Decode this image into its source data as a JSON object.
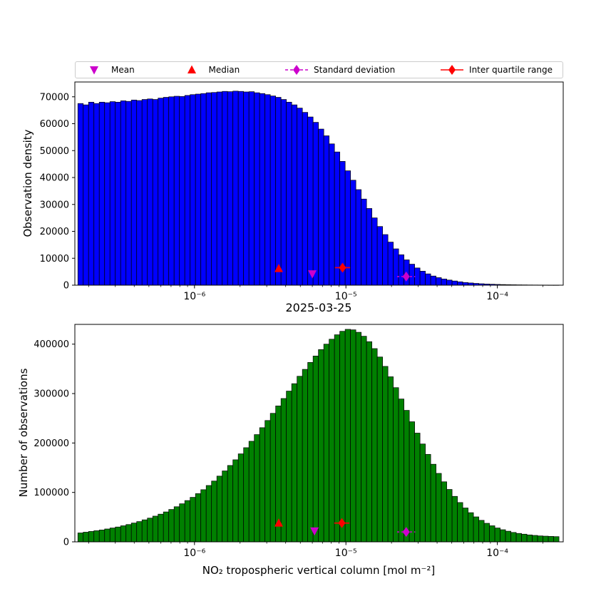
{
  "legend": {
    "items": [
      {
        "label": "Mean",
        "marker": "triangle-down",
        "color": "#cc00cc",
        "line": "none"
      },
      {
        "label": "Median",
        "marker": "triangle-up",
        "color": "#ff0000",
        "line": "none"
      },
      {
        "label": "Standard deviation",
        "marker": "diamond",
        "color": "#cc00cc",
        "line": "dashed"
      },
      {
        "label": "Inter quartile range",
        "marker": "diamond",
        "color": "#ff0000",
        "line": "solid"
      }
    ]
  },
  "chart_data": [
    {
      "type": "bar",
      "title": "",
      "ylabel": "Observation density",
      "xlabel": "2025-03-25",
      "x_scale": "log10",
      "xlim_log10": [
        -6.79,
        -3.565
      ],
      "ylim": [
        0,
        75500
      ],
      "grid": false,
      "legend_position": "top",
      "bar_color": "#0000ff",
      "bar_edge_color": "#000000",
      "xticks": [
        {
          "v": 1e-06,
          "label": "10⁻⁶"
        },
        {
          "v": 1e-05,
          "label": "10⁻⁵"
        },
        {
          "v": 0.0001,
          "label": "10⁻⁴"
        }
      ],
      "yticks": [
        0,
        10000,
        20000,
        30000,
        40000,
        50000,
        60000,
        70000
      ],
      "bins": {
        "log10_start": -6.77,
        "log10_step": 0.0353,
        "count": 90
      },
      "values": [
        67500,
        67000,
        68000,
        67500,
        68000,
        67800,
        68200,
        68000,
        68500,
        68300,
        68800,
        68600,
        69000,
        69200,
        69000,
        69500,
        69800,
        70000,
        70200,
        70100,
        70500,
        70800,
        71000,
        71200,
        71500,
        71600,
        71800,
        72000,
        71900,
        72100,
        72000,
        71800,
        71900,
        71500,
        71200,
        70800,
        70300,
        69800,
        69000,
        68000,
        67000,
        65800,
        64200,
        62500,
        60500,
        58000,
        55500,
        52500,
        49500,
        46000,
        42500,
        39000,
        35500,
        32000,
        28500,
        25000,
        21800,
        18800,
        16000,
        13500,
        11300,
        9400,
        7800,
        6400,
        5200,
        4200,
        3400,
        2800,
        2300,
        1900,
        1550,
        1250,
        1000,
        820,
        660,
        530,
        430,
        350,
        280,
        230,
        185,
        150,
        120,
        100,
        80,
        65,
        55,
        45,
        35,
        30
      ],
      "markers": [
        {
          "name": "median",
          "shape": "triangle-up",
          "color": "#ff0000",
          "x": 3.6e-06,
          "y": 6200,
          "line": "none"
        },
        {
          "name": "mean",
          "shape": "triangle-down",
          "color": "#cc00cc",
          "x": 6e-06,
          "y": 4200,
          "line": "none"
        },
        {
          "name": "inter-quartile-range",
          "shape": "diamond",
          "color": "#ff0000",
          "x": 9.5e-06,
          "y": 6500,
          "xerr_log10": 0.05,
          "line": "solid"
        },
        {
          "name": "standard-deviation",
          "shape": "diamond",
          "color": "#cc00cc",
          "x": 2.5e-05,
          "y": 3200,
          "xerr_log10": 0.06,
          "line": "dashed"
        }
      ]
    },
    {
      "type": "bar",
      "title": "",
      "ylabel": "Number of observations",
      "xlabel": "NO₂ tropospheric vertical column [mol m⁻²]",
      "x_scale": "log10",
      "xlim_log10": [
        -6.79,
        -3.565
      ],
      "ylim": [
        0,
        440000
      ],
      "grid": false,
      "bar_color": "#008000",
      "bar_edge_color": "#000000",
      "xticks": [
        {
          "v": 1e-06,
          "label": "10⁻⁶"
        },
        {
          "v": 1e-05,
          "label": "10⁻⁵"
        },
        {
          "v": 0.0001,
          "label": "10⁻⁴"
        }
      ],
      "yticks": [
        0,
        100000,
        200000,
        300000,
        400000
      ],
      "bins": {
        "log10_start": -6.77,
        "log10_step": 0.0353,
        "count": 90
      },
      "values": [
        18000,
        19500,
        21000,
        22500,
        24000,
        26000,
        28000,
        30000,
        32500,
        35000,
        38000,
        41000,
        44500,
        48000,
        52000,
        56000,
        60500,
        65500,
        71000,
        77000,
        83500,
        90000,
        97500,
        105500,
        114000,
        123000,
        133000,
        143500,
        154500,
        166000,
        178000,
        190500,
        203500,
        217000,
        231000,
        245500,
        260000,
        275000,
        290000,
        305000,
        320000,
        335000,
        349000,
        363000,
        376000,
        389000,
        400000,
        410000,
        419000,
        426000,
        430000,
        429000,
        424000,
        416000,
        405000,
        391000,
        374000,
        355000,
        334000,
        312000,
        289000,
        266000,
        243000,
        220000,
        198000,
        177000,
        157000,
        138500,
        121500,
        106000,
        92000,
        79500,
        68500,
        59000,
        50500,
        43500,
        37500,
        32500,
        28000,
        24500,
        21500,
        19000,
        17000,
        15500,
        14000,
        13000,
        12000,
        11500,
        11000,
        10500
      ],
      "markers": [
        {
          "name": "median",
          "shape": "triangle-up",
          "color": "#ff0000",
          "x": 3.6e-06,
          "y": 38000,
          "line": "none"
        },
        {
          "name": "mean",
          "shape": "triangle-down",
          "color": "#cc00cc",
          "x": 6.2e-06,
          "y": 22000,
          "line": "none"
        },
        {
          "name": "inter-quartile-range",
          "shape": "diamond",
          "color": "#ff0000",
          "x": 9.4e-06,
          "y": 38000,
          "xerr_log10": 0.05,
          "line": "solid"
        },
        {
          "name": "standard-deviation",
          "shape": "diamond",
          "color": "#cc00cc",
          "x": 2.5e-05,
          "y": 20000,
          "xerr_log10": 0.06,
          "line": "dashed"
        }
      ]
    }
  ]
}
